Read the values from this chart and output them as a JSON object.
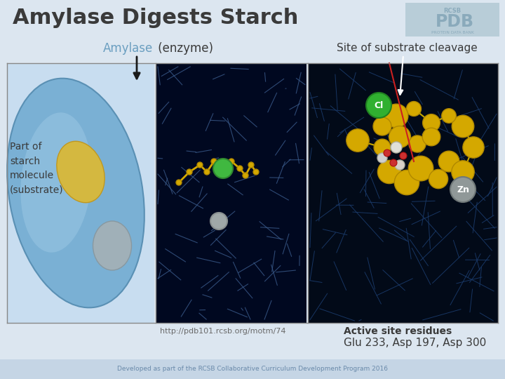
{
  "title": "Amylase Digests Starch",
  "title_color": "#3a3a3a",
  "title_fontsize": 22,
  "title_bold": true,
  "bg_color": "#dce6f0",
  "footer_bg": "#c5d5e5",
  "footer_text": "Developed as part of the RCSB Collaborative Curriculum Development Program 2016",
  "footer_color": "#6a8aaa",
  "label_amylase": "Amylase",
  "label_enzyme": " (enzyme)",
  "label_site": "Site of substrate cleavage",
  "label_part_starch": "Part of\nstarch\nmolecule\n(substrate)",
  "label_url": "http://pdb101.rcsb.org/motm/74",
  "label_active_site": "Active site residues",
  "label_residues": "Glu 233, Asp 197, Asp 300",
  "label_zn": "Zn",
  "label_cl": "Cl",
  "img_left_bg": "#c8ddf0",
  "img_mid_bg": "#000820",
  "img_right_bg": "#020a18",
  "arrow_color": "#1a1a1a"
}
